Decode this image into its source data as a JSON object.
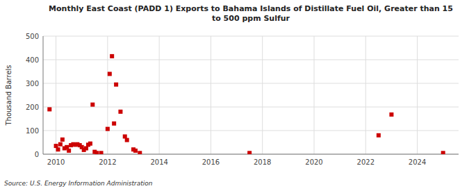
{
  "chart_data": {
    "type": "scatter",
    "title": "Monthly East Coast (PADD 1) Exports to Bahama Islands of Distillate Fuel Oil, Greater than 15\nto 500 ppm Sulfur",
    "ylabel": "Thousand Barrels",
    "source": "Source: U.S. Energy Information Administration",
    "color": "#cc0000",
    "marker": "square",
    "grid": true,
    "xlim": [
      2009.5,
      2025.6
    ],
    "xticks": [
      2010,
      2012,
      2014,
      2016,
      2018,
      2020,
      2022,
      2024
    ],
    "ylim": [
      0,
      500
    ],
    "yticks": [
      0,
      100,
      200,
      300,
      400,
      500
    ],
    "x": [
      2009.75,
      2010.0,
      2010.08,
      2010.17,
      2010.25,
      2010.33,
      2010.42,
      2010.5,
      2010.58,
      2010.67,
      2010.75,
      2010.83,
      2010.92,
      2011.0,
      2011.08,
      2011.17,
      2011.25,
      2011.33,
      2011.42,
      2011.5,
      2011.58,
      2011.75,
      2012.0,
      2012.08,
      2012.17,
      2012.25,
      2012.33,
      2012.5,
      2012.67,
      2012.75,
      2013.0,
      2013.08,
      2013.25,
      2017.5,
      2022.5,
      2023.0,
      2025.0
    ],
    "values": [
      190,
      35,
      20,
      42,
      62,
      25,
      30,
      15,
      38,
      42,
      40,
      42,
      38,
      30,
      18,
      25,
      40,
      45,
      210,
      10,
      5,
      5,
      107,
      340,
      415,
      130,
      295,
      180,
      75,
      60,
      20,
      15,
      5,
      5,
      80,
      168,
      5
    ]
  }
}
